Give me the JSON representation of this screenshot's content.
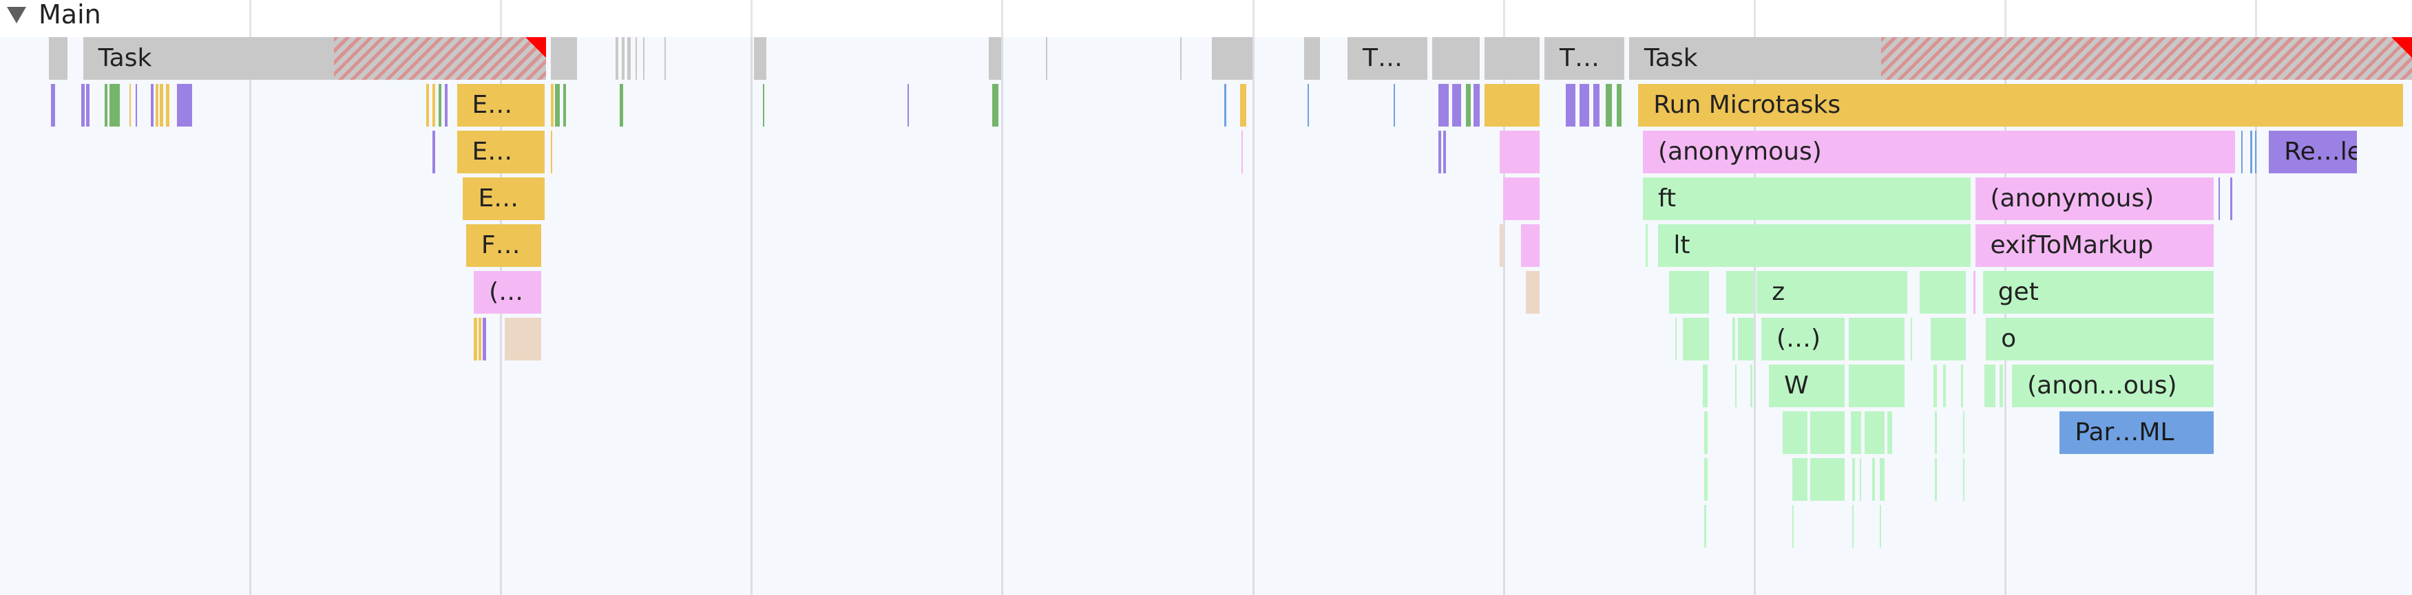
{
  "track": {
    "title": "Main",
    "expanded": true
  },
  "colors": {
    "task": "#c8c8c8",
    "scripting": "#eec455",
    "function": "#f4b9f4",
    "js": "#bbf5c4",
    "purple": "#9c81e4",
    "blue": "#6fa1e2",
    "tan": "#ecd7c4",
    "green": "#75b56a",
    "long_task_marker": "#ff0000"
  },
  "labels": {
    "task1": "Task",
    "t2": "T…",
    "t3": "T…",
    "task4": "Task",
    "e1": "E…",
    "e2": "E…",
    "e3": "E…",
    "f1": "F…",
    "p1": "(…",
    "run_microtasks": "Run Microtasks",
    "anon1": "(anonymous)",
    "rele": "Re…le",
    "ft": "ft",
    "anon2": "(anonymous)",
    "lt": "lt",
    "exif": "exifToMarkup",
    "z": "z",
    "get": "get",
    "paren": "(…)",
    "o": "o",
    "w": "W",
    "anon3": "(anon…ous)",
    "parml": "Par…ML"
  }
}
